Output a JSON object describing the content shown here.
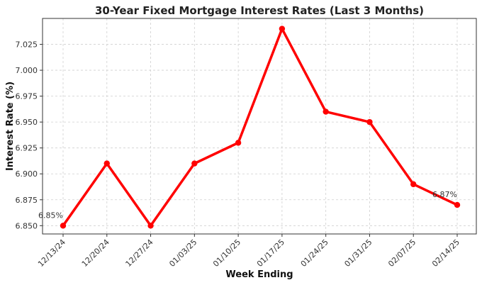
{
  "chart_data": {
    "type": "line",
    "title": "30-Year Fixed Mortgage Interest Rates (Last 3 Months)",
    "xlabel": "Week Ending",
    "ylabel": "Interest Rate (%)",
    "categories": [
      "12/13/24",
      "12/20/24",
      "12/27/24",
      "01/03/25",
      "01/10/25",
      "01/17/25",
      "01/24/25",
      "01/31/25",
      "02/07/25",
      "02/14/25"
    ],
    "series": [
      {
        "name": "",
        "color": "#ff0000",
        "values": [
          6.85,
          6.91,
          6.85,
          6.91,
          6.93,
          7.04,
          6.96,
          6.95,
          6.89,
          6.87
        ]
      }
    ],
    "yticks": [
      "6.850",
      "6.875",
      "6.900",
      "6.925",
      "6.950",
      "6.975",
      "7.000",
      "7.025"
    ],
    "ylim": [
      6.842,
      7.05
    ],
    "grid": true,
    "annotations": [
      {
        "index": 0,
        "text": "6.85%"
      },
      {
        "index": 9,
        "text": "6.87%"
      }
    ]
  }
}
